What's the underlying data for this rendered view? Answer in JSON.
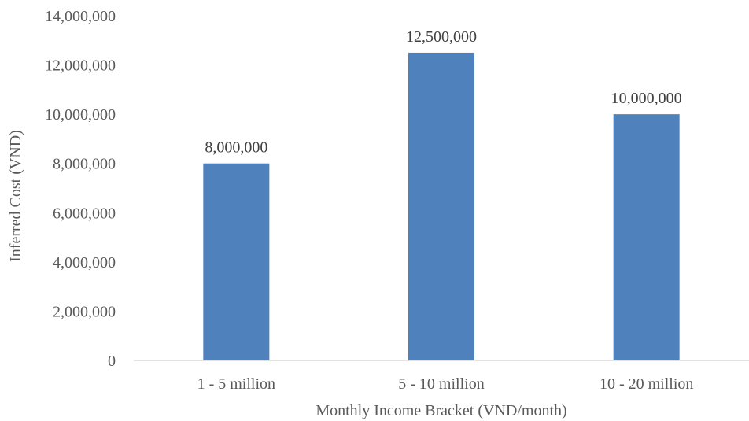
{
  "chart_data": {
    "type": "bar",
    "categories": [
      "1 - 5 million",
      "5 - 10 million",
      "10 - 20 million"
    ],
    "values": [
      8000000,
      12500000,
      10000000
    ],
    "data_labels": [
      "8,000,000",
      "12,500,000",
      "10,000,000"
    ],
    "title": "",
    "xlabel": "Monthly Income Bracket (VND/month)",
    "ylabel": "Inferred Cost (VND)",
    "ylim": [
      0,
      14000000
    ],
    "y_ticks": [
      0,
      2000000,
      4000000,
      6000000,
      8000000,
      10000000,
      12000000,
      14000000
    ],
    "y_tick_labels": [
      "0",
      "2,000,000",
      "4,000,000",
      "6,000,000",
      "8,000,000",
      "10,000,000",
      "12,000,000",
      "14,000,000"
    ],
    "grid": false,
    "legend": "none",
    "bar_color": "#4f81bd"
  }
}
